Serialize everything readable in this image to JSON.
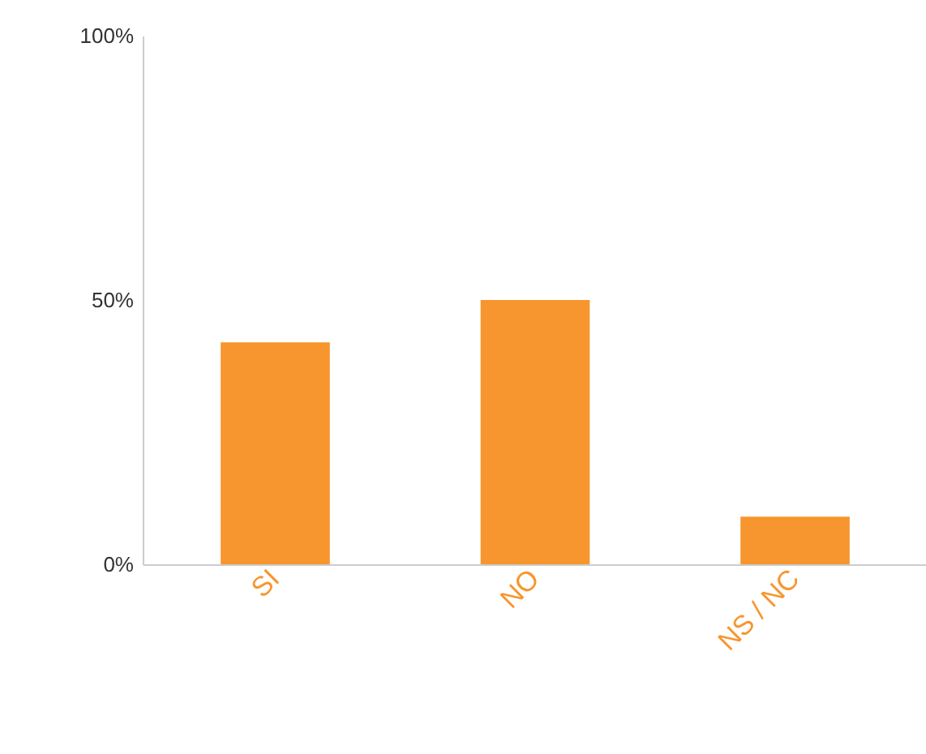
{
  "chart_data": {
    "type": "bar",
    "categories": [
      "SI",
      "NO",
      "NS / NC"
    ],
    "values": [
      42,
      50,
      9
    ],
    "color": "#f7962e",
    "ylim": [
      0,
      100
    ],
    "yticks": [
      {
        "value": 0,
        "label": "0%"
      },
      {
        "value": 50,
        "label": "50%"
      },
      {
        "value": 100,
        "label": "100%"
      }
    ],
    "grid": false
  }
}
